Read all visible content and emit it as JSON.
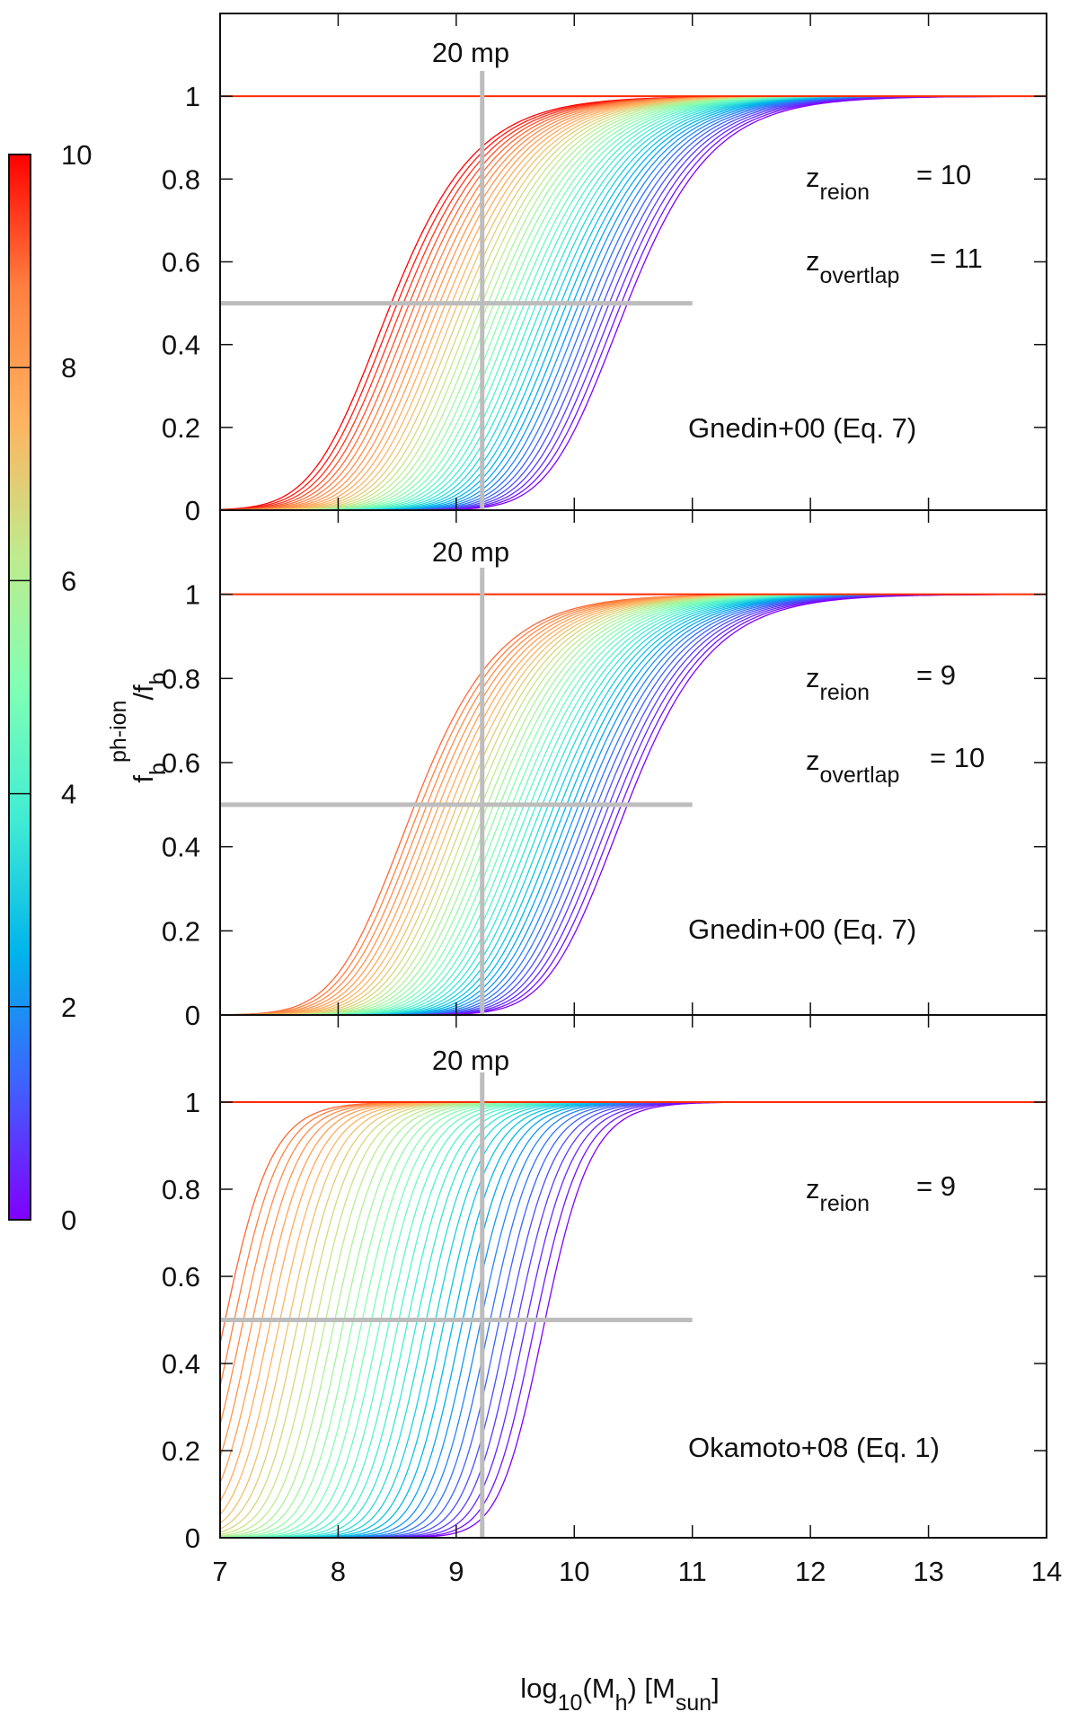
{
  "figure": {
    "xlabel": {
      "main": "log",
      "sub1": "10",
      "mid": "(M",
      "sub2": "h",
      "end": ") [M",
      "sub3": "sun",
      "close": "]"
    },
    "ylabel": {
      "f": "f",
      "sub": "b",
      "sup": "ph-ion",
      "slash": "/f",
      "sub2": "b"
    }
  },
  "colorbar": {
    "ticks": [
      "0",
      "2",
      "4",
      "6",
      "8",
      "10"
    ],
    "range": [
      0,
      10
    ],
    "colors": [
      "#8000ff",
      "#4060ff",
      "#00b4eb",
      "#40ecd4",
      "#80ffb4",
      "#c0eb8d",
      "#ffb360",
      "#ff8040",
      "#ff0000"
    ]
  },
  "chart_data": [
    {
      "type": "line",
      "panel": "top",
      "model": "gnedin",
      "title": "",
      "label": "Gnedin+00 (Eq. 7)",
      "zreion_label": "z",
      "zreion_sub": "reion",
      "zreion_value": "= 10",
      "zoverlap_label": "z",
      "zoverlap_sub": "overtlap",
      "zoverlap_value": "= 11",
      "curve_count": 40,
      "m_half_range": [
        8.45,
        10.45
      ],
      "color_value_range": [
        10,
        0
      ],
      "xlim": [
        7,
        14
      ],
      "ylim": [
        0,
        1.2
      ],
      "xticks": [
        "7",
        "8",
        "9",
        "10",
        "11",
        "12",
        "13",
        "14"
      ],
      "yticks": [
        "0",
        "0.2",
        "0.4",
        "0.6",
        "0.8",
        "1"
      ],
      "mp_label": "20 mp",
      "mp_line_x": 9.22,
      "half_line": {
        "y": 0.5,
        "x_range": [
          7,
          11
        ]
      },
      "reference_line_y": 1.0
    },
    {
      "type": "line",
      "panel": "middle",
      "model": "gnedin",
      "title": "",
      "label": "Gnedin+00 (Eq. 7)",
      "zreion_label": "z",
      "zreion_sub": "reion",
      "zreion_value": "= 9",
      "zoverlap_label": "z",
      "zoverlap_sub": "overtlap",
      "zoverlap_value": "= 10",
      "curve_count": 36,
      "m_half_range": [
        8.65,
        10.45
      ],
      "color_value_range": [
        9,
        0
      ],
      "xlim": [
        7,
        14
      ],
      "ylim": [
        0,
        1.2
      ],
      "xticks": [
        "7",
        "8",
        "9",
        "10",
        "11",
        "12",
        "13",
        "14"
      ],
      "yticks": [
        "0",
        "0.2",
        "0.4",
        "0.6",
        "0.8",
        "1"
      ],
      "mp_label": "20 mp",
      "mp_line_x": 9.22,
      "half_line": {
        "y": 0.5,
        "x_range": [
          7,
          11
        ]
      },
      "reference_line_y": 1.0
    },
    {
      "type": "line",
      "panel": "bottom",
      "model": "okamoto",
      "title": "",
      "label": "Okamoto+08 (Eq. 1)",
      "zreion_label": "z",
      "zreion_sub": "reion",
      "zreion_value": "= 9",
      "curve_count": 36,
      "m_half_range": [
        7.22,
        9.93
      ],
      "color_value_range": [
        9,
        0
      ],
      "xlim": [
        7,
        14
      ],
      "ylim": [
        0,
        1.2
      ],
      "xticks": [
        "7",
        "8",
        "9",
        "10",
        "11",
        "12",
        "13",
        "14"
      ],
      "yticks": [
        "0",
        "0.2",
        "0.4",
        "0.6",
        "0.8",
        "1"
      ],
      "mp_label": "20 mp",
      "mp_line_x": 9.22,
      "half_line": {
        "y": 0.5,
        "x_range": [
          7,
          11
        ]
      },
      "reference_line_y": 1.0
    }
  ]
}
